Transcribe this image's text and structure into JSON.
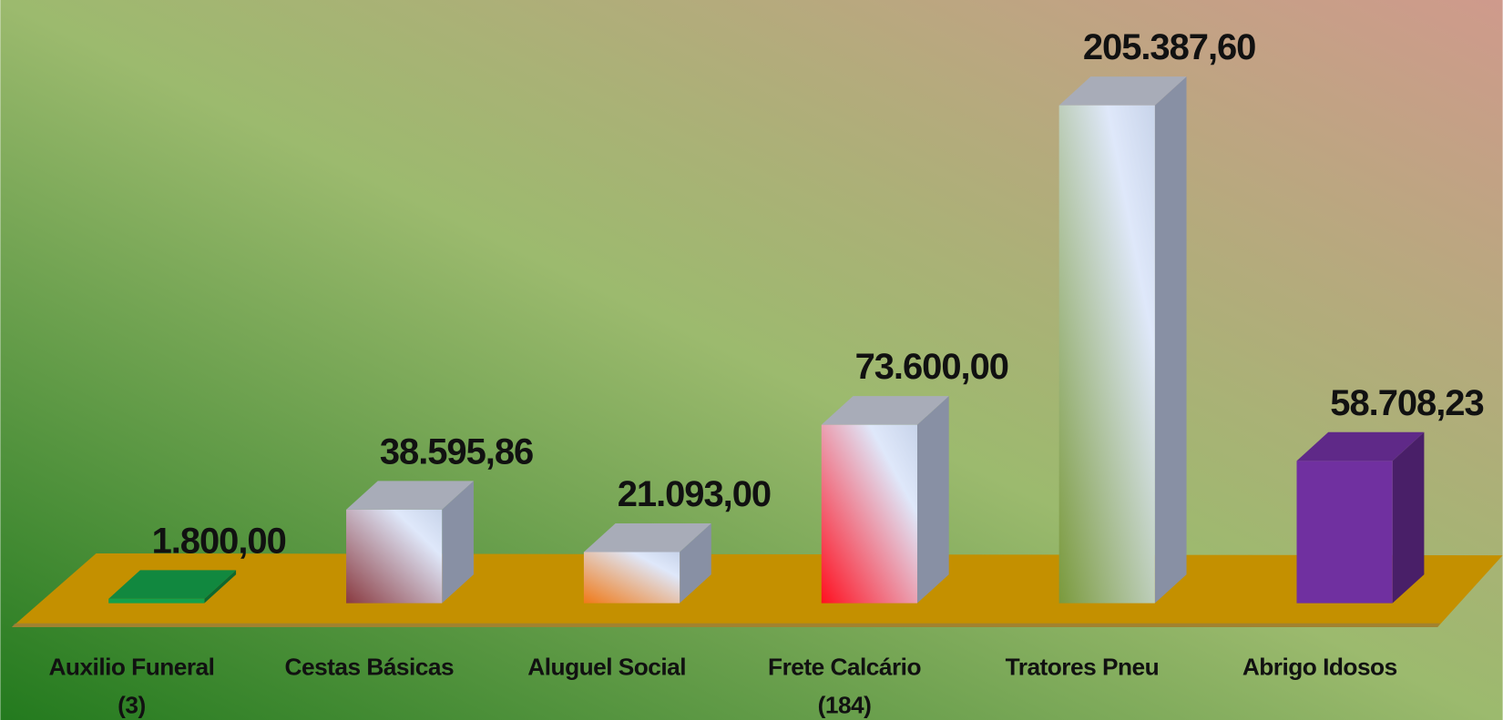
{
  "chart_data": {
    "type": "bar3d",
    "categories": [
      "Auxilio Funeral\n(3)",
      "Cestas Básicas",
      "Aluguel Social",
      "Frete Calcário\n(184)",
      "Tratores Pneu",
      "Abrigo Idosos"
    ],
    "values": [
      1800,
      38595.86,
      21093,
      73600,
      205387.6,
      58708.23
    ],
    "value_labels": [
      "1.800,00",
      "38.595,86",
      "21.093,00",
      "73.600,00",
      "205.387,60",
      "58.708,23"
    ],
    "colors": [
      "#14a04a",
      "#8a3a40",
      "#f07a18",
      "#ff1020",
      "#7a9a3c",
      "#7030a0"
    ],
    "gradient": [
      false,
      true,
      true,
      true,
      true,
      false
    ],
    "floor_color": "#c49000"
  }
}
